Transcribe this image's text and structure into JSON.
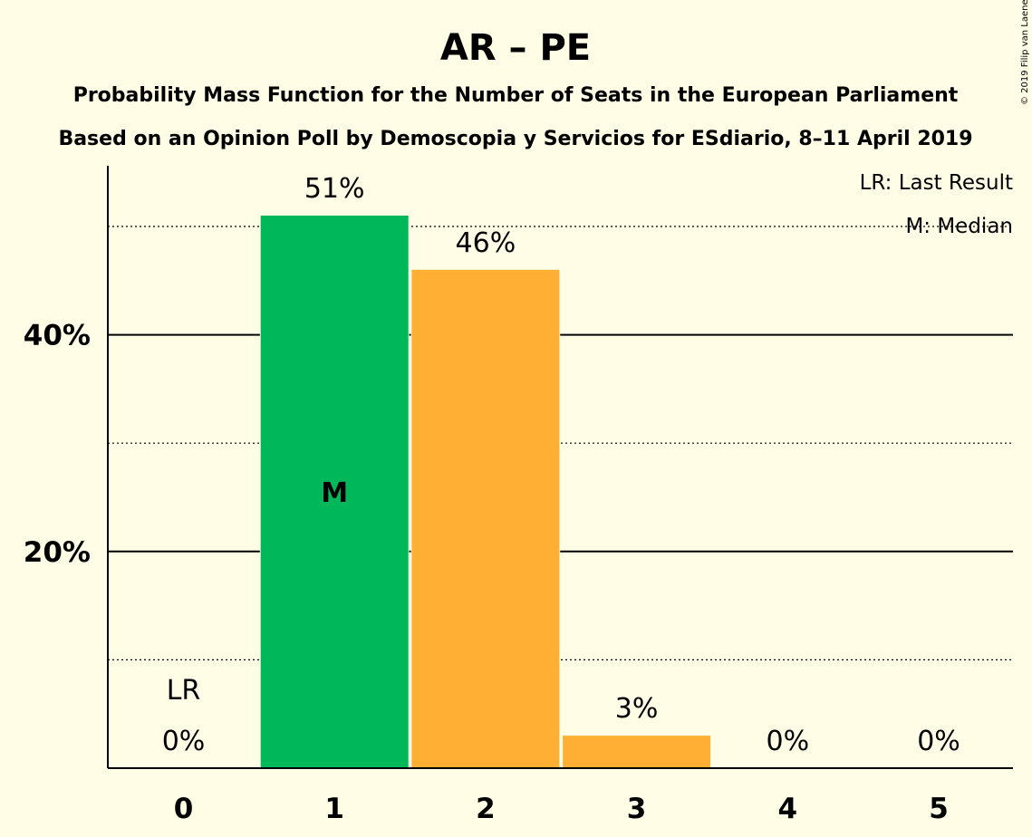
{
  "chart_data": {
    "type": "bar",
    "title": "AR – PE",
    "subtitle_lines": [
      "Probability Mass Function for the Number of Seats in the European Parliament",
      "Based on an Opinion Poll by Demoscopia y Servicios for ESdiario, 8–11 April 2019"
    ],
    "copyright": "© 2019 Filip van Laenen",
    "categories": [
      "0",
      "1",
      "2",
      "3",
      "4",
      "5"
    ],
    "values": [
      0,
      51,
      46,
      3,
      0,
      0
    ],
    "value_labels": [
      "0%",
      "51%",
      "46%",
      "3%",
      "0%",
      "0%"
    ],
    "y_tick_values": [
      20,
      40
    ],
    "y_tick_labels": [
      "20%",
      "40%"
    ],
    "minor_gridlines": [
      10,
      30,
      50
    ],
    "ylim": [
      0,
      55.6
    ],
    "median_index": 1,
    "median_marker": "M",
    "last_result_index": 0,
    "last_result_marker": "LR",
    "legend": [
      "LR: Last Result",
      "M: Median"
    ],
    "legend_position": "top-right",
    "colors": {
      "background": "#FFFDE5",
      "median_bar": "#00B85A",
      "other_bar": "#FFB034",
      "axis": "#000000"
    }
  }
}
